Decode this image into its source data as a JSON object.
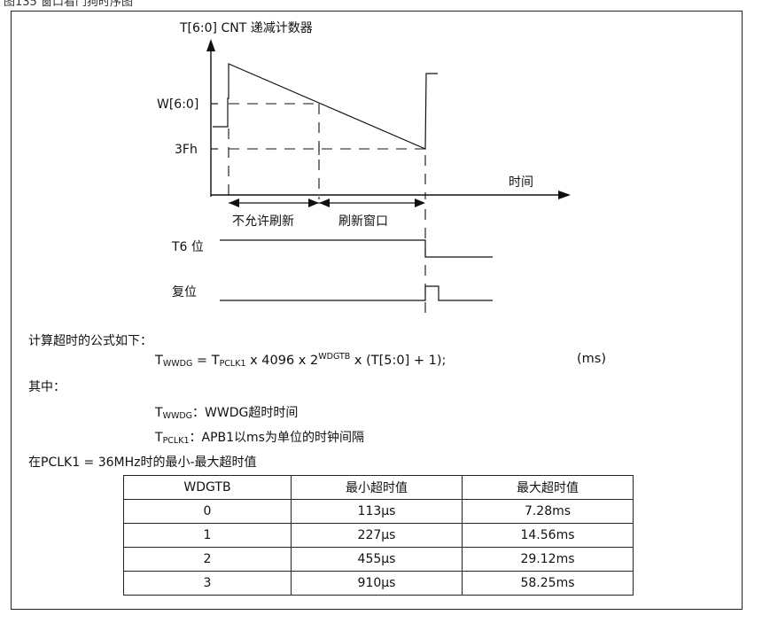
{
  "caption": "图135 窗口看门狗时序图",
  "diagram": {
    "y_axis_label": "T[6:0] CNT 递减计数器",
    "w_label": "W[6:0]",
    "h3f_label": "3Fh",
    "x_axis_label": "时间",
    "not_allowed_label": "不允许刷新",
    "refresh_window_label": "刷新窗口",
    "t6_label": "T6 位",
    "reset_label": "复位"
  },
  "formula": {
    "intro": "计算超时的公式如下：",
    "lhs_main": "T",
    "lhs_sub": "WWDG",
    "eq": " = T",
    "pclk_sub": "PCLK1",
    "mid": " x 4096 x 2",
    "exp": "WDGTB",
    "tail": " x (T[5:0] + 1);",
    "unit": "(ms)"
  },
  "where": {
    "label": "其中：",
    "def1_sym": "T",
    "def1_sub": "WWDG",
    "def1_text": "：WWDG超时时间",
    "def2_sym": "T",
    "def2_sub": "PCLK1",
    "def2_text": "：APB1以ms为单位的时钟间隔"
  },
  "table_title": "在PCLK1 = 36MHz时的最小-最大超时值",
  "table": {
    "headers": [
      "WDGTB",
      "最小超时值",
      "最大超时值"
    ],
    "rows": [
      [
        "0",
        "113µs",
        "7.28ms"
      ],
      [
        "1",
        "227µs",
        "14.56ms"
      ],
      [
        "2",
        "455µs",
        "29.12ms"
      ],
      [
        "3",
        "910µs",
        "58.25ms"
      ]
    ]
  }
}
